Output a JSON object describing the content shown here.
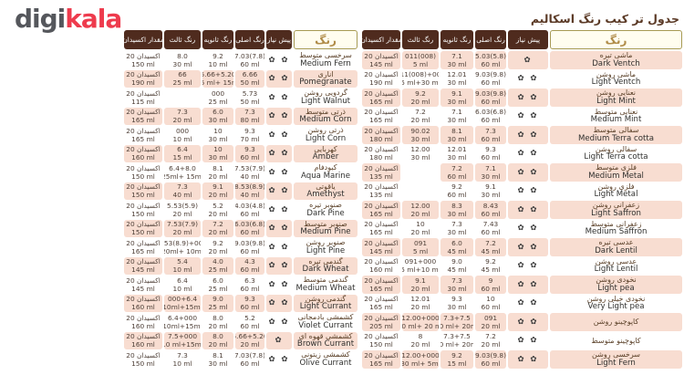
{
  "logo": {
    "digi": "digi",
    "kala": "kala"
  },
  "title": "جدول تر کیب رنگ اسکالیم",
  "columns": {
    "color": "رنگ",
    "prerequisite": "پیش نیاز",
    "primary": "رنگ  اصلی",
    "secondary": "رنگ ثانویه",
    "tertiary": "رنگ ثالث",
    "oxidant": "مقدار اکسیدان"
  },
  "oxidant_label": "اکسیدان 20",
  "prereq_icon_glyph": "✿",
  "prereq_icon_name": "flower-icon",
  "colors": {
    "row_pink": "#f8ddd1",
    "header_brown": "#4f2b1e",
    "color_header_bg": "#fffdef",
    "color_header_border": "#a79a54",
    "color_header_text": "#b08c49",
    "title_text": "#5b3a26",
    "logo_gray": "#55575c",
    "logo_red": "#ee3b4d"
  },
  "tables": {
    "right": {
      "rows": [
        {
          "fa": "ماشی تیره",
          "en": "Dark Ventch",
          "icons": 1,
          "primary": [
            "5.03(5.8)",
            "60 ml"
          ],
          "secondary": [
            "7.1",
            "30 ml"
          ],
          "tertiary": [
            "011(008)",
            "5 ml"
          ],
          "oxidant": "145 ml"
        },
        {
          "fa": "ماشی روشن",
          "en": "Light Ventch",
          "icons": 2,
          "primary": [
            "9.03(9.8)",
            "60 ml"
          ],
          "secondary": [
            "12.01",
            "30 ml"
          ],
          "tertiary": [
            "011(008)+000",
            "5 ml+30 ml"
          ],
          "oxidant": "190 ml"
        },
        {
          "fa": "نعنایی روشن",
          "en": "Light Mint",
          "icons": 2,
          "primary": [
            "9.03(9.8)",
            "60 ml"
          ],
          "secondary": [
            "9.1",
            "30 ml"
          ],
          "tertiary": [
            "9.2",
            "20 ml"
          ],
          "oxidant": "165 ml"
        },
        {
          "fa": "نعنایی متوسط",
          "en": "Medium Mint",
          "icons": 2,
          "primary": [
            "6.03(6.8)",
            "60 ml"
          ],
          "secondary": [
            "7.1",
            "30 ml"
          ],
          "tertiary": [
            "7.2",
            "20 ml"
          ],
          "oxidant": "165 ml"
        },
        {
          "fa": "سفالی متوسط",
          "en": "Medium Terra cotta",
          "icons": 2,
          "primary": [
            "7.3",
            "60 ml"
          ],
          "secondary": [
            "8.1",
            "30 ml"
          ],
          "tertiary": [
            "90.02",
            "30 ml"
          ],
          "oxidant": "180 ml"
        },
        {
          "fa": "سفالی روشن",
          "en": "Light Terra cotta",
          "icons": 2,
          "primary": [
            "9.3",
            "60 ml"
          ],
          "secondary": [
            "12.01",
            "30 ml"
          ],
          "tertiary": [
            "12.00",
            "30 ml"
          ],
          "oxidant": "180 ml"
        },
        {
          "fa": "فلزی متوسط",
          "en": "Medium Metal",
          "icons": 2,
          "primary": [
            "7.1",
            "30 ml"
          ],
          "secondary": [
            "7.2",
            "60 ml"
          ],
          "tertiary": [
            "",
            ""
          ],
          "oxidant": "135 ml"
        },
        {
          "fa": "فلزی روشن",
          "en": "Light  Metal",
          "icons": 2,
          "primary": [
            "9.1",
            "30 ml"
          ],
          "secondary": [
            "9.2",
            "60 ml"
          ],
          "tertiary": [
            "",
            ""
          ],
          "oxidant": "135 ml"
        },
        {
          "fa": "زعفرانی روشن",
          "en": "Light Saffron",
          "icons": 2,
          "primary": [
            "8.43",
            "60 ml"
          ],
          "secondary": [
            "8.3",
            "30 ml"
          ],
          "tertiary": [
            "12.00",
            "20 ml"
          ],
          "oxidant": "165 ml"
        },
        {
          "fa": "زعفرانی متوسط",
          "en": "Medium Saffron",
          "icons": 2,
          "primary": [
            "7.43",
            "60 ml"
          ],
          "secondary": [
            "7.3",
            "30 ml"
          ],
          "tertiary": [
            "10",
            "20 ml"
          ],
          "oxidant": "165 ml"
        },
        {
          "fa": "عدسی تیره",
          "en": "Dark Lentil",
          "icons": 2,
          "primary": [
            "7.2",
            "45 ml"
          ],
          "secondary": [
            "6.0",
            "45 ml"
          ],
          "tertiary": [
            "091",
            "5 ml"
          ],
          "oxidant": "145 ml"
        },
        {
          "fa": "عدسی روشن",
          "en": "Light Lentil",
          "icons": 2,
          "primary": [
            "9.2",
            "45 ml"
          ],
          "secondary": [
            "9.0",
            "45 ml"
          ],
          "tertiary": [
            "091+000",
            "5 ml+10 ml"
          ],
          "oxidant": "160 ml"
        },
        {
          "fa": "نخودی روشن",
          "en": "Light pea",
          "icons": 2,
          "primary": [
            "9",
            "60 ml"
          ],
          "secondary": [
            "7.3",
            "30 ml"
          ],
          "tertiary": [
            "9.1",
            "20 ml"
          ],
          "oxidant": "165 ml"
        },
        {
          "fa": "نخودی خیلی روشن",
          "en": "Very Light pea",
          "icons": 2,
          "primary": [
            "10",
            "60 ml"
          ],
          "secondary": [
            "9.3",
            "30 ml"
          ],
          "tertiary": [
            "12.01",
            "20 ml"
          ],
          "oxidant": "165 ml"
        },
        {
          "fa": "کاپوچینو روشن",
          "en": "",
          "icons": 2,
          "primary": [
            "091",
            "20 ml"
          ],
          "secondary": [
            "7.3+7.5",
            "40 ml+ 20ml"
          ],
          "tertiary": [
            "12.00+000",
            "40 ml+ 20 ml"
          ],
          "oxidant": "205 ml"
        },
        {
          "fa": "کاپوچینو متوسط",
          "en": "",
          "icons": 2,
          "primary": [
            "7.2",
            "20 ml"
          ],
          "secondary": [
            "7.3+7.5",
            "40 ml+ 20ml"
          ],
          "tertiary": [
            "8",
            "20 ml"
          ],
          "oxidant": "150 ml"
        },
        {
          "fa": "سرخسی روشن",
          "en": "Light Fern",
          "icons": 2,
          "primary": [
            "9.03(9.8)",
            "60 ml"
          ],
          "secondary": [
            "9.2",
            "15 ml"
          ],
          "tertiary": [
            "12.00+000",
            "30 ml+ 5ml"
          ],
          "oxidant": "165 ml"
        }
      ]
    },
    "left": {
      "rows": [
        {
          "fa": "سرخسی متوسط",
          "en": "Medium Fern",
          "icons": 2,
          "primary": [
            "7.03(7.8)",
            "60 ml"
          ],
          "secondary": [
            "9.2",
            "10 ml"
          ],
          "tertiary": [
            "8.0",
            "30 ml"
          ],
          "oxidant": "150 ml"
        },
        {
          "fa": "اناری",
          "en": "Pomegranate",
          "icons": 2,
          "primary": [
            "6.66",
            "50 ml"
          ],
          "secondary": [
            "5.66+5.20",
            "35 ml+ 15ml"
          ],
          "tertiary": [
            "66",
            "25 ml"
          ],
          "oxidant": "190 ml"
        },
        {
          "fa": "گردویی روشن",
          "en": "Light Walnut",
          "icons": 2,
          "primary": [
            "5.73",
            "50 ml"
          ],
          "secondary": [
            "000",
            "25 ml"
          ],
          "tertiary": [
            "",
            ""
          ],
          "oxidant": "115 ml"
        },
        {
          "fa": "ذرتی متوسط",
          "en": "Medium Corn",
          "icons": 2,
          "primary": [
            "7.3",
            "80 ml"
          ],
          "secondary": [
            "6.0",
            "30 ml"
          ],
          "tertiary": [
            "7.3",
            "20 ml"
          ],
          "oxidant": "165 ml"
        },
        {
          "fa": "ذرتی روشن",
          "en": "Light Corn",
          "icons": 2,
          "primary": [
            "9.3",
            "70 ml"
          ],
          "secondary": [
            "10",
            "30 ml"
          ],
          "tertiary": [
            "000",
            "10 ml"
          ],
          "oxidant": "165 ml"
        },
        {
          "fa": "کهربایی",
          "en": "Amber",
          "icons": 2,
          "primary": [
            "9.3",
            "60 ml"
          ],
          "secondary": [
            "10",
            "30 ml"
          ],
          "tertiary": [
            "6.4",
            "15 ml"
          ],
          "oxidant": "160 ml"
        },
        {
          "fa": "کبودفام",
          "en": "Aqua Marine",
          "icons": 2,
          "primary": [
            "7.53(7.9)",
            "40 ml"
          ],
          "secondary": [
            "8.1",
            "20 ml"
          ],
          "tertiary": [
            "6.4+8.0",
            "25ml+ 15ml"
          ],
          "oxidant": "150 ml"
        },
        {
          "fa": "یاقوتی",
          "en": "Amethyst",
          "icons": 2,
          "primary": [
            "8.53(8.9)",
            "40 ml"
          ],
          "secondary": [
            "9.1",
            "20 ml"
          ],
          "tertiary": [
            "7.3",
            "40 ml"
          ],
          "oxidant": "150 ml"
        },
        {
          "fa": "صنوبر تیره",
          "en": "Dark Pine",
          "icons": 2,
          "primary": [
            "4.03(4.8)",
            "60 ml"
          ],
          "secondary": [
            "5.2",
            "20 ml"
          ],
          "tertiary": [
            "5.53(5.9)",
            "20 ml"
          ],
          "oxidant": "150 ml"
        },
        {
          "fa": "صنوبر متوسط",
          "en": "Medium Pine",
          "icons": 2,
          "primary": [
            "6.03(6.8)",
            "60 ml"
          ],
          "secondary": [
            "7.2",
            "20 ml"
          ],
          "tertiary": [
            "7.53(7.9)",
            "20 ml"
          ],
          "oxidant": "150 ml"
        },
        {
          "fa": "صنوبر روشن",
          "en": "Light Pine",
          "icons": 2,
          "primary": [
            "9.03(9.8)",
            "60 ml"
          ],
          "secondary": [
            "9.2",
            "20 ml"
          ],
          "tertiary": [
            "8.53(8.9)+000",
            "20ml+ 10ml"
          ],
          "oxidant": "165 ml"
        },
        {
          "fa": "گندمی تیره",
          "en": "Dark Wheat",
          "icons": 2,
          "primary": [
            "4.3",
            "60 ml"
          ],
          "secondary": [
            "4.0",
            "25 ml"
          ],
          "tertiary": [
            "5.4",
            "10 ml"
          ],
          "oxidant": "145 ml"
        },
        {
          "fa": "گندمی متوسط",
          "en": "Medium Wheat",
          "icons": 2,
          "primary": [
            "6.3",
            "60 ml"
          ],
          "secondary": [
            "6.0",
            "25 ml"
          ],
          "tertiary": [
            "6.4",
            "10 ml"
          ],
          "oxidant": "145 ml"
        },
        {
          "fa": "گندمی روشن",
          "en": "Light Currant",
          "icons": 2,
          "primary": [
            "9.3",
            "60 ml"
          ],
          "secondary": [
            "9.0",
            "25 ml"
          ],
          "tertiary": [
            "000+6.4",
            "10ml+15ml"
          ],
          "oxidant": "160 ml"
        },
        {
          "fa": "کشمشی بادمجانی",
          "en": "Violet Currant",
          "icons": 2,
          "primary": [
            "5.2",
            "60 ml"
          ],
          "secondary": [
            "8.0",
            "20 ml"
          ],
          "tertiary": [
            "6.4+000",
            "10ml+15ml"
          ],
          "oxidant": "160 ml"
        },
        {
          "fa": "کشمشی قهوه ای",
          "en": "Brown Currant",
          "icons": 1,
          "primary": [
            "5.66+5.20",
            "20 ml"
          ],
          "secondary": [
            "8.0",
            "20 ml"
          ],
          "tertiary": [
            "7.5+000",
            "10 ml+15ml"
          ],
          "oxidant": "160 ml"
        },
        {
          "fa": "کشمشی زیتونی",
          "en": "Olive Currant",
          "icons": 2,
          "primary": [
            "7.03(7.8)",
            "60 ml"
          ],
          "secondary": [
            "8.1",
            "30 ml"
          ],
          "tertiary": [
            "7.3",
            "10 ml"
          ],
          "oxidant": "150 ml"
        }
      ]
    }
  }
}
